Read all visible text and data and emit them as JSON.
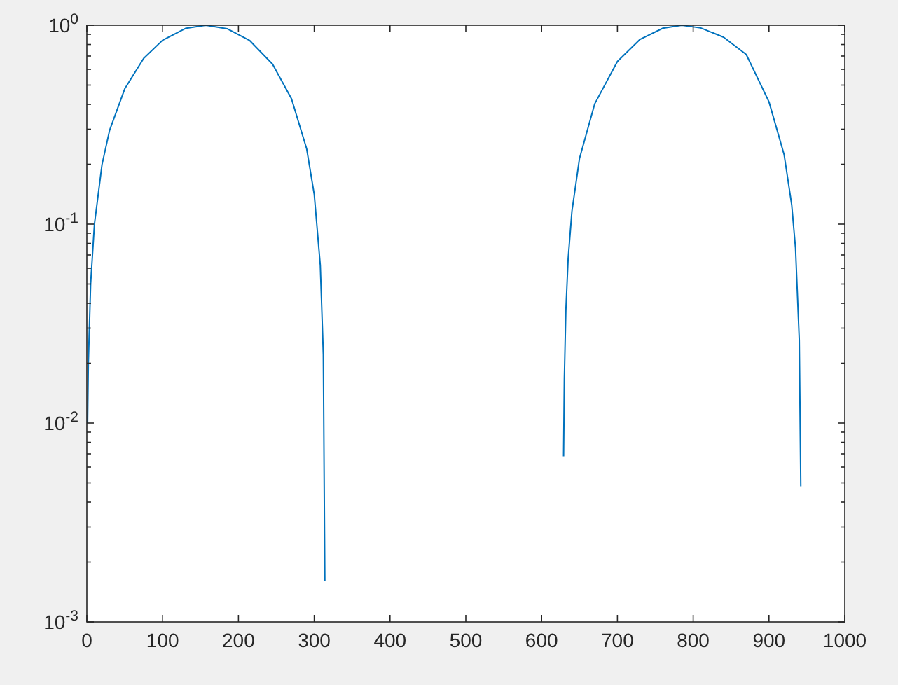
{
  "chart_data": {
    "type": "line",
    "log": "y",
    "grid": false,
    "marker": "none",
    "line_style": "solid",
    "x": [
      1,
      2,
      5,
      10,
      20,
      30,
      50,
      75,
      100,
      130,
      157,
      185,
      215,
      245,
      270,
      290,
      300,
      308,
      312,
      314,
      320,
      629,
      630,
      632,
      635,
      640,
      650,
      670,
      700,
      730,
      760,
      785,
      810,
      840,
      870,
      900,
      920,
      930,
      935,
      940,
      942
    ],
    "series": [
      {
        "color": "#0072bd",
        "values": [
          0.01,
          0.02,
          0.05,
          0.0998,
          0.199,
          0.296,
          0.479,
          0.682,
          0.841,
          0.964,
          1.0,
          0.961,
          0.837,
          0.638,
          0.427,
          0.239,
          0.141,
          0.062,
          0.022,
          0.0016,
          null,
          0.0068,
          0.0168,
          0.0368,
          0.0667,
          0.116,
          0.214,
          0.402,
          0.657,
          0.85,
          0.966,
          1.0,
          0.969,
          0.871,
          0.713,
          0.412,
          0.223,
          0.125,
          0.0758,
          0.0261,
          0.0048
        ]
      }
    ],
    "xlim": [
      0,
      1000
    ],
    "xticks": [
      0,
      100,
      200,
      300,
      400,
      500,
      600,
      700,
      800,
      900,
      1000
    ],
    "ylim": [
      0.001,
      1
    ],
    "yticks": [
      {
        "value": 0.001,
        "label": "10$^{-3}$"
      },
      {
        "value": 0.002,
        "label": null
      },
      {
        "value": 0.003,
        "label": null
      },
      {
        "value": 0.004,
        "label": null
      },
      {
        "value": 0.005,
        "label": null
      },
      {
        "value": 0.006,
        "label": null
      },
      {
        "value": 0.007,
        "label": null
      },
      {
        "value": 0.008,
        "label": null
      },
      {
        "value": 0.009,
        "label": null
      },
      {
        "value": 0.01,
        "label": "10$^{-2}$"
      },
      {
        "value": 0.02,
        "label": null
      },
      {
        "value": 0.03,
        "label": null
      },
      {
        "value": 0.04,
        "label": null
      },
      {
        "value": 0.05,
        "label": null
      },
      {
        "value": 0.06,
        "label": null
      },
      {
        "value": 0.07,
        "label": null
      },
      {
        "value": 0.08,
        "label": null
      },
      {
        "value": 0.09,
        "label": null
      },
      {
        "value": 0.1,
        "label": "10$^{-1}$"
      },
      {
        "value": 0.2,
        "label": null
      },
      {
        "value": 0.3,
        "label": null
      },
      {
        "value": 0.4,
        "label": null
      },
      {
        "value": 0.5,
        "label": null
      },
      {
        "value": 0.6,
        "label": null
      },
      {
        "value": 0.7,
        "label": null
      },
      {
        "value": 0.8,
        "label": null
      },
      {
        "value": 0.9,
        "label": null
      },
      {
        "value": 1,
        "label": "10$^{0}$"
      }
    ]
  }
}
